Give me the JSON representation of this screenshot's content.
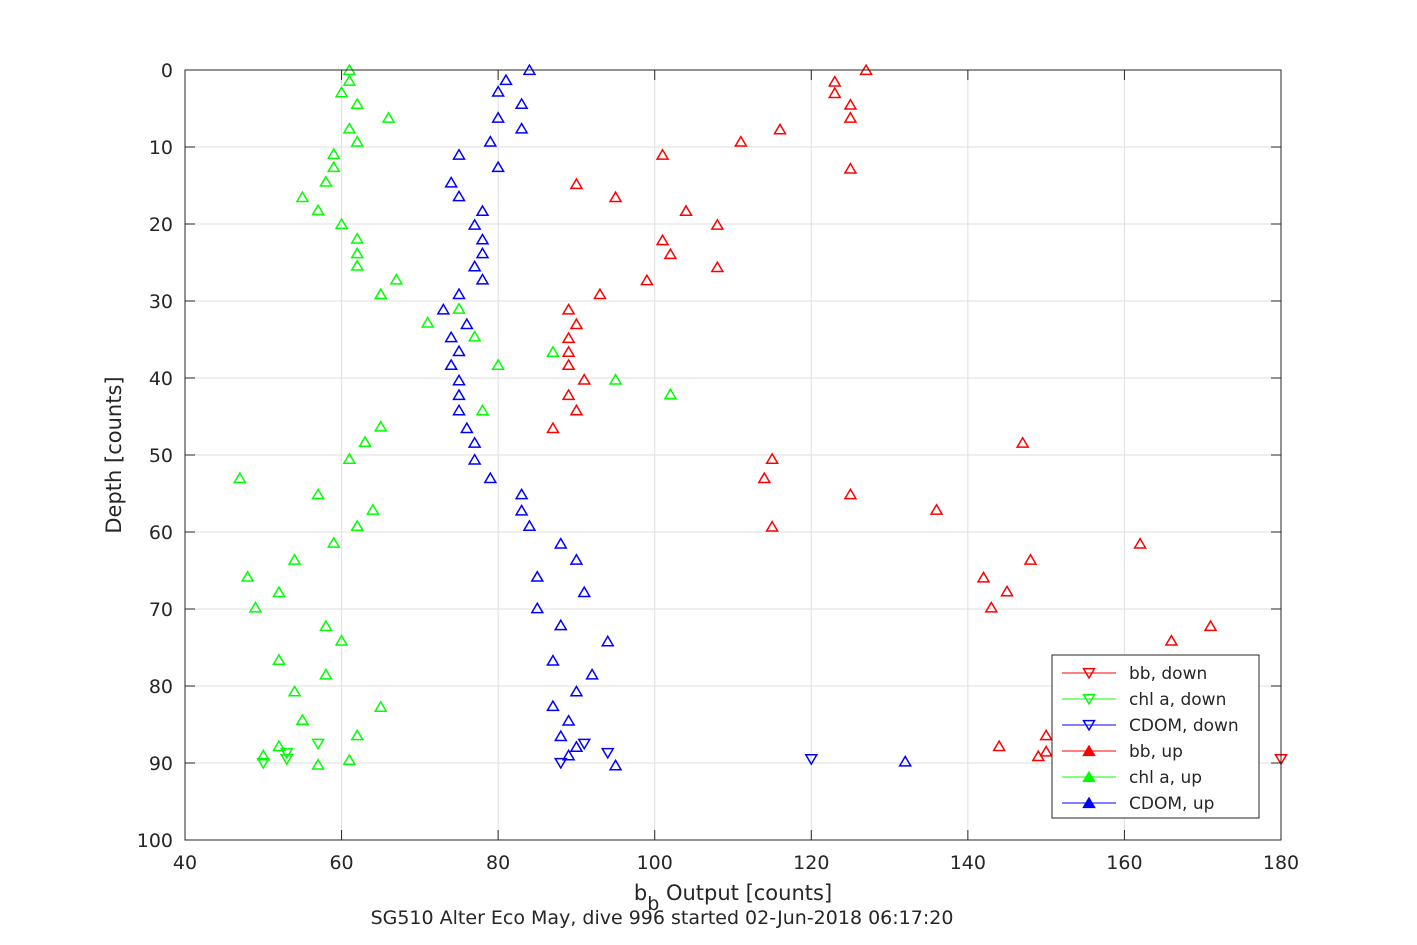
{
  "chart_data": {
    "type": "scatter",
    "xlabel_main": "b",
    "xlabel_sub": "b",
    "xlabel_rest": " Output [counts]",
    "ylabel": "Depth [counts]",
    "caption": "SG510 Alter Eco May, dive 996 started 02-Jun-2018 06:17:20",
    "xlim": [
      40,
      180
    ],
    "ylim": [
      0,
      100
    ],
    "y_reversed": true,
    "grid": true,
    "legend_position": "lower-right",
    "xticks": [
      40,
      60,
      80,
      100,
      120,
      140,
      160,
      180
    ],
    "yticks": [
      0,
      10,
      20,
      30,
      40,
      50,
      60,
      70,
      80,
      90,
      100
    ],
    "series": [
      {
        "name": "bb, down",
        "color": "#ff0000",
        "marker": "triangle-down",
        "points": [
          [
            180,
            89.5
          ]
        ]
      },
      {
        "name": "chl a, down",
        "color": "#00ff00",
        "marker": "triangle-down",
        "points": [
          [
            57,
            87.5
          ],
          [
            53,
            88.7
          ],
          [
            53,
            89.5
          ],
          [
            50,
            90
          ]
        ]
      },
      {
        "name": "CDOM, down",
        "color": "#0000ff",
        "marker": "triangle-down",
        "points": [
          [
            120,
            89.5
          ],
          [
            91,
            87.5
          ],
          [
            94,
            88.7
          ],
          [
            88,
            90
          ]
        ]
      },
      {
        "name": "bb, up",
        "color": "#ff0000",
        "marker": "triangle-up",
        "points": [
          [
            127,
            0
          ],
          [
            123,
            1.5
          ],
          [
            123,
            3
          ],
          [
            125,
            4.5
          ],
          [
            125,
            6.2
          ],
          [
            116,
            7.7
          ],
          [
            111,
            9.3
          ],
          [
            101,
            11
          ],
          [
            125,
            12.8
          ],
          [
            90,
            14.8
          ],
          [
            95,
            16.5
          ],
          [
            104,
            18.3
          ],
          [
            108,
            20.1
          ],
          [
            101,
            22.1
          ],
          [
            102,
            23.9
          ],
          [
            108,
            25.6
          ],
          [
            99,
            27.3
          ],
          [
            93,
            29.1
          ],
          [
            89,
            31.1
          ],
          [
            90,
            33
          ],
          [
            89,
            34.8
          ],
          [
            89,
            36.6
          ],
          [
            89,
            38.3
          ],
          [
            91,
            40.2
          ],
          [
            89,
            42.2
          ],
          [
            90,
            44.2
          ],
          [
            87,
            46.5
          ],
          [
            147,
            48.4
          ],
          [
            115,
            50.5
          ],
          [
            114,
            53
          ],
          [
            125,
            55.1
          ],
          [
            136,
            57.1
          ],
          [
            115,
            59.3
          ],
          [
            162,
            61.5
          ],
          [
            148,
            63.6
          ],
          [
            142,
            65.9
          ],
          [
            145,
            67.7
          ],
          [
            143,
            69.8
          ],
          [
            171,
            72.2
          ],
          [
            166,
            74.1
          ],
          [
            150,
            86.4
          ],
          [
            144,
            87.8
          ],
          [
            150,
            88.5
          ],
          [
            149,
            89.1
          ]
        ]
      },
      {
        "name": "chl a, up",
        "color": "#00ff00",
        "marker": "triangle-up",
        "points": [
          [
            61,
            0
          ],
          [
            61,
            1.4
          ],
          [
            60,
            2.9
          ],
          [
            62,
            4.4
          ],
          [
            66,
            6.2
          ],
          [
            61,
            7.6
          ],
          [
            62,
            9.3
          ],
          [
            59,
            10.9
          ],
          [
            59,
            12.6
          ],
          [
            58,
            14.5
          ],
          [
            55,
            16.5
          ],
          [
            57,
            18.2
          ],
          [
            60,
            20
          ],
          [
            62,
            21.9
          ],
          [
            62,
            23.8
          ],
          [
            62,
            25.4
          ],
          [
            67,
            27.2
          ],
          [
            65,
            29.1
          ],
          [
            75,
            31
          ],
          [
            71,
            32.8
          ],
          [
            77,
            34.6
          ],
          [
            87,
            36.6
          ],
          [
            80,
            38.3
          ],
          [
            95,
            40.2
          ],
          [
            102,
            42.1
          ],
          [
            78,
            44.2
          ],
          [
            65,
            46.3
          ],
          [
            63,
            48.3
          ],
          [
            61,
            50.5
          ],
          [
            47,
            53
          ],
          [
            57,
            55.1
          ],
          [
            64,
            57.1
          ],
          [
            62,
            59.2
          ],
          [
            59,
            61.4
          ],
          [
            54,
            63.6
          ],
          [
            48,
            65.8
          ],
          [
            52,
            67.8
          ],
          [
            49,
            69.8
          ],
          [
            58,
            72.2
          ],
          [
            60,
            74.1
          ],
          [
            52,
            76.6
          ],
          [
            58,
            78.5
          ],
          [
            54,
            80.7
          ],
          [
            65,
            82.7
          ],
          [
            55,
            84.4
          ],
          [
            62,
            86.4
          ],
          [
            52,
            87.8
          ],
          [
            50,
            89
          ],
          [
            61,
            89.6
          ],
          [
            57,
            90.2
          ]
        ]
      },
      {
        "name": "CDOM, up",
        "color": "#0000ff",
        "marker": "triangle-up",
        "points": [
          [
            84,
            0
          ],
          [
            81,
            1.3
          ],
          [
            80,
            2.8
          ],
          [
            83,
            4.4
          ],
          [
            80,
            6.2
          ],
          [
            83,
            7.6
          ],
          [
            79,
            9.3
          ],
          [
            75,
            11
          ],
          [
            80,
            12.6
          ],
          [
            74,
            14.6
          ],
          [
            75,
            16.4
          ],
          [
            78,
            18.3
          ],
          [
            77,
            20.1
          ],
          [
            78,
            22
          ],
          [
            78,
            23.8
          ],
          [
            77,
            25.5
          ],
          [
            78,
            27.2
          ],
          [
            75,
            29.1
          ],
          [
            73,
            31.1
          ],
          [
            76,
            33
          ],
          [
            74,
            34.7
          ],
          [
            75,
            36.5
          ],
          [
            74,
            38.3
          ],
          [
            75,
            40.3
          ],
          [
            75,
            42.2
          ],
          [
            75,
            44.2
          ],
          [
            76,
            46.5
          ],
          [
            77,
            48.4
          ],
          [
            77,
            50.6
          ],
          [
            79,
            53
          ],
          [
            83,
            55.1
          ],
          [
            83,
            57.2
          ],
          [
            84,
            59.2
          ],
          [
            88,
            61.5
          ],
          [
            90,
            63.6
          ],
          [
            85,
            65.8
          ],
          [
            91,
            67.8
          ],
          [
            85,
            69.9
          ],
          [
            88,
            72.1
          ],
          [
            94,
            74.2
          ],
          [
            87,
            76.7
          ],
          [
            92,
            78.5
          ],
          [
            90,
            80.7
          ],
          [
            87,
            82.6
          ],
          [
            89,
            84.5
          ],
          [
            88,
            86.5
          ],
          [
            90,
            87.9
          ],
          [
            89,
            89
          ],
          [
            132,
            89.8
          ],
          [
            95,
            90.3
          ]
        ]
      }
    ]
  }
}
